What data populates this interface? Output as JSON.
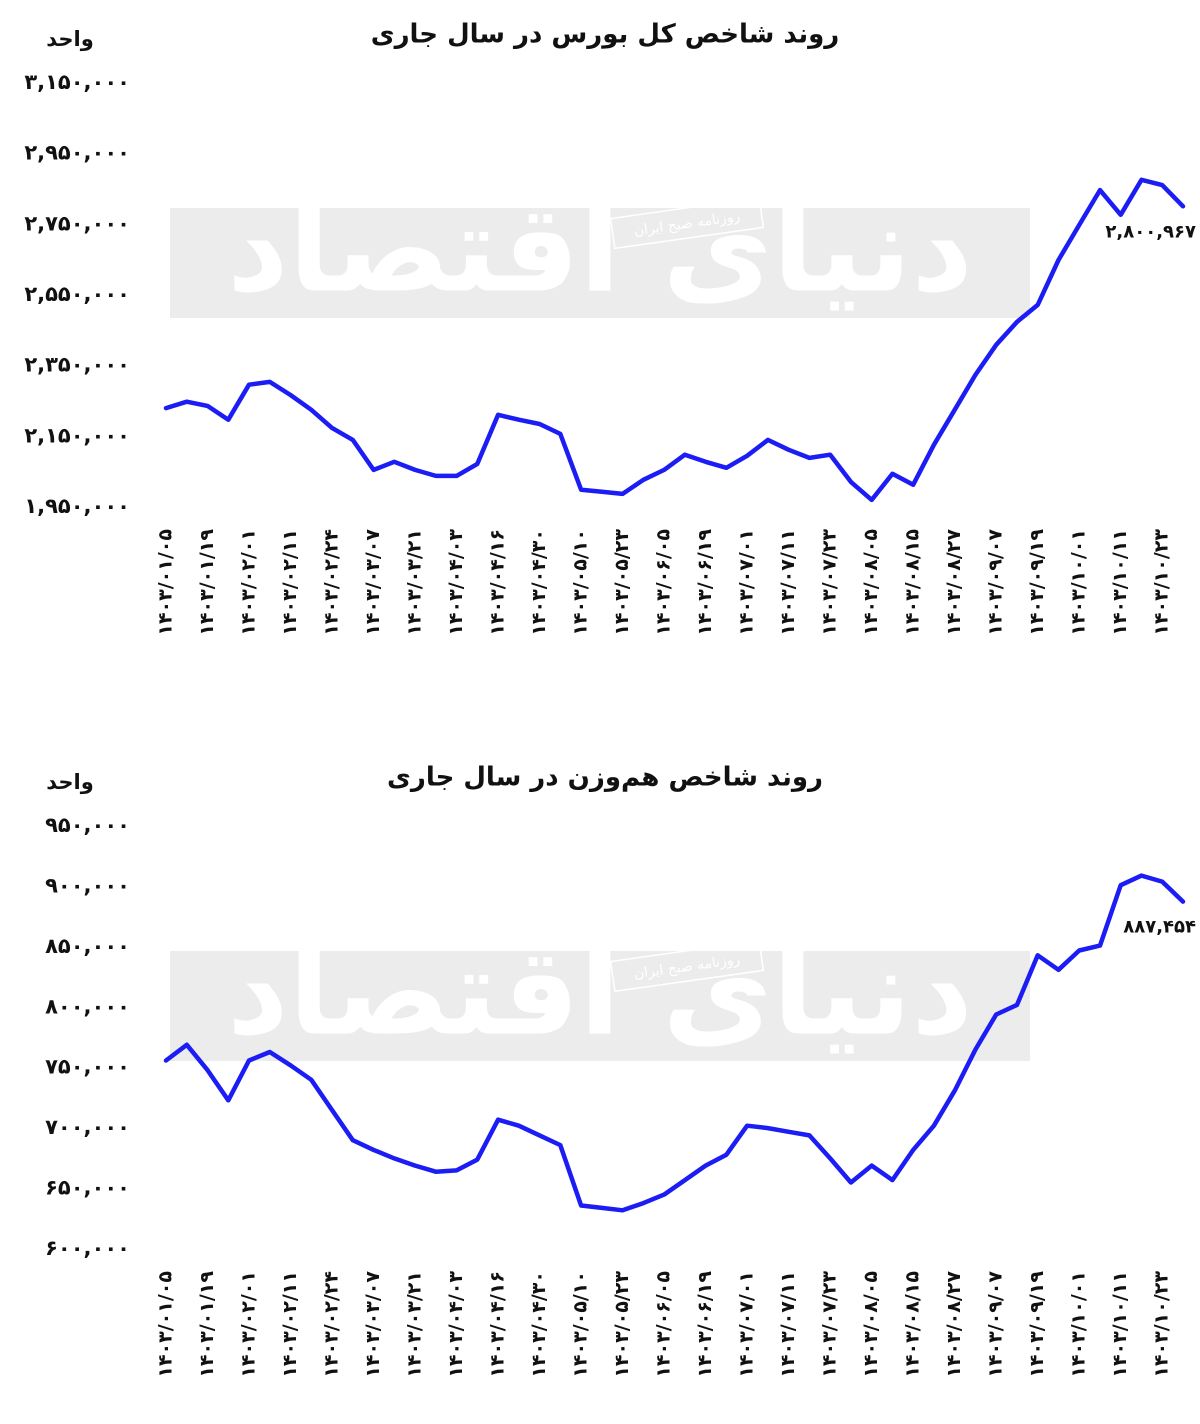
{
  "chart_data": [
    {
      "type": "line",
      "title": "روند شاخص کل بورس در سال جاری",
      "y_label": "واحد",
      "watermark": "دنیای اقتصاد",
      "watermark_sub": "روزنامه صبح ایران",
      "categories": [
        "۱۴۰۳/۰۱/۰۵",
        null,
        "۱۴۰۳/۰۱/۱۹",
        null,
        "۱۴۰۳/۰۲/۰۱",
        null,
        "۱۴۰۳/۰۲/۱۱",
        null,
        "۱۴۰۳/۰۲/۲۴",
        null,
        "۱۴۰۳/۰۳/۰۷",
        null,
        "۱۴۰۳/۰۳/۲۱",
        null,
        "۱۴۰۳/۰۴/۰۳",
        null,
        "۱۴۰۳/۰۴/۱۶",
        null,
        "۱۴۰۳/۰۴/۳۰",
        null,
        "۱۴۰۳/۰۵/۱۰",
        null,
        "۱۴۰۳/۰۵/۲۳",
        null,
        "۱۴۰۳/۰۶/۰۵",
        null,
        "۱۴۰۳/۰۶/۱۹",
        null,
        "۱۴۰۳/۰۷/۰۱",
        null,
        "۱۴۰۳/۰۷/۱۱",
        null,
        "۱۴۰۳/۰۷/۲۳",
        null,
        "۱۴۰۳/۰۸/۰۵",
        null,
        "۱۴۰۳/۰۸/۱۵",
        null,
        "۱۴۰۳/۰۸/۲۷",
        null,
        "۱۴۰۳/۰۹/۰۷",
        null,
        "۱۴۰۳/۰۹/۱۹",
        null,
        "۱۴۰۳/۱۰/۰۱",
        null,
        "۱۴۰۳/۱۰/۱۱",
        null,
        "۱۴۰۳/۱۰/۲۳",
        null
      ],
      "series": [
        {
          "name": null,
          "color": "#1c1cf5",
          "values": [
            2230000,
            2248000,
            2236000,
            2197000,
            2296000,
            2304000,
            2267000,
            2225000,
            2174000,
            2140000,
            2055000,
            2078000,
            2055000,
            2038000,
            2038000,
            2072000,
            2211000,
            2197000,
            2185000,
            2157000,
            1999000,
            1993000,
            1987000,
            2027000,
            2055000,
            2098000,
            2078000,
            2061000,
            2095000,
            2140000,
            2112000,
            2089000,
            2098000,
            2021000,
            1970000,
            2044000,
            2013000,
            2126000,
            2225000,
            2324000,
            2409000,
            2474000,
            2522000,
            2649000,
            2748000,
            2847000,
            2777000,
            2876000,
            2861000,
            2800967
          ],
          "value_labels": [
            null,
            null,
            null,
            null,
            null,
            null,
            null,
            null,
            null,
            null,
            null,
            null,
            null,
            null,
            null,
            null,
            null,
            null,
            null,
            null,
            null,
            null,
            null,
            null,
            null,
            null,
            null,
            null,
            null,
            null,
            null,
            null,
            null,
            null,
            null,
            null,
            null,
            null,
            null,
            null,
            null,
            null,
            null,
            null,
            null,
            null,
            null,
            null,
            null,
            "۲,۸۰۰,۹۶۷"
          ]
        }
      ],
      "ylim": [
        1950000,
        3150000
      ],
      "yticks": [
        {
          "value": 1950000,
          "label": "۱,۹۵۰,۰۰۰"
        },
        {
          "value": 2150000,
          "label": "۲,۱۵۰,۰۰۰"
        },
        {
          "value": 2350000,
          "label": "۲,۳۵۰,۰۰۰"
        },
        {
          "value": 2550000,
          "label": "۲,۵۵۰,۰۰۰"
        },
        {
          "value": 2750000,
          "label": "۲,۷۵۰,۰۰۰"
        },
        {
          "value": 2950000,
          "label": "۲,۹۵۰,۰۰۰"
        },
        {
          "value": 3150000,
          "label": "۳,۱۵۰,۰۰۰"
        }
      ],
      "grid": false
    },
    {
      "type": "line",
      "title": "روند شاخص هم‌وزن در سال جاری",
      "y_label": "واحد",
      "watermark": "دنیای اقتصاد",
      "watermark_sub": "روزنامه صبح ایران",
      "categories": [
        "۱۴۰۳/۰۱/۰۵",
        null,
        "۱۴۰۳/۰۱/۱۹",
        null,
        "۱۴۰۳/۰۲/۰۱",
        null,
        "۱۴۰۳/۰۲/۱۱",
        null,
        "۱۴۰۳/۰۲/۲۴",
        null,
        "۱۴۰۳/۰۳/۰۷",
        null,
        "۱۴۰۳/۰۳/۲۱",
        null,
        "۱۴۰۳/۰۴/۰۳",
        null,
        "۱۴۰۳/۰۴/۱۶",
        null,
        "۱۴۰۳/۰۴/۳۰",
        null,
        "۱۴۰۳/۰۵/۱۰",
        null,
        "۱۴۰۳/۰۵/۲۳",
        null,
        "۱۴۰۳/۰۶/۰۵",
        null,
        "۱۴۰۳/۰۶/۱۹",
        null,
        "۱۴۰۳/۰۷/۰۱",
        null,
        "۱۴۰۳/۰۷/۱۱",
        null,
        "۱۴۰۳/۰۷/۲۳",
        null,
        "۱۴۰۳/۰۸/۰۵",
        null,
        "۱۴۰۳/۰۸/۱۵",
        null,
        "۱۴۰۳/۰۸/۲۷",
        null,
        "۱۴۰۳/۰۹/۰۷",
        null,
        "۱۴۰۳/۰۹/۱۹",
        null,
        "۱۴۰۳/۱۰/۰۱",
        null,
        "۱۴۰۳/۱۰/۱۱",
        null,
        "۱۴۰۳/۱۰/۲۳",
        null
      ],
      "series": [
        {
          "name": null,
          "color": "#1c1cf5",
          "values": [
            756000,
            769000,
            748000,
            723000,
            756000,
            763000,
            752000,
            740000,
            715000,
            690000,
            682000,
            675000,
            669000,
            664000,
            665000,
            674000,
            707000,
            702000,
            694000,
            686000,
            636000,
            634000,
            632000,
            638000,
            645000,
            657000,
            669000,
            678000,
            702000,
            700000,
            697000,
            694000,
            675000,
            655000,
            669000,
            657000,
            682000,
            702000,
            731000,
            765000,
            794000,
            802000,
            843000,
            831000,
            847000,
            851000,
            901000,
            909000,
            904000,
            887454
          ],
          "value_labels": [
            null,
            null,
            null,
            null,
            null,
            null,
            null,
            null,
            null,
            null,
            null,
            null,
            null,
            null,
            null,
            null,
            null,
            null,
            null,
            null,
            null,
            null,
            null,
            null,
            null,
            null,
            null,
            null,
            null,
            null,
            null,
            null,
            null,
            null,
            null,
            null,
            null,
            null,
            null,
            null,
            null,
            null,
            null,
            null,
            null,
            null,
            null,
            null,
            null,
            "۸۸۷,۴۵۴"
          ]
        }
      ],
      "ylim": [
        600000,
        950000
      ],
      "yticks": [
        {
          "value": 600000,
          "label": "۶۰۰,۰۰۰"
        },
        {
          "value": 650000,
          "label": "۶۵۰,۰۰۰"
        },
        {
          "value": 700000,
          "label": "۷۰۰,۰۰۰"
        },
        {
          "value": 750000,
          "label": "۷۵۰,۰۰۰"
        },
        {
          "value": 800000,
          "label": "۸۰۰,۰۰۰"
        },
        {
          "value": 850000,
          "label": "۸۵۰,۰۰۰"
        },
        {
          "value": 900000,
          "label": "۹۰۰,۰۰۰"
        },
        {
          "value": 950000,
          "label": "۹۵۰,۰۰۰"
        }
      ],
      "grid": false
    }
  ]
}
